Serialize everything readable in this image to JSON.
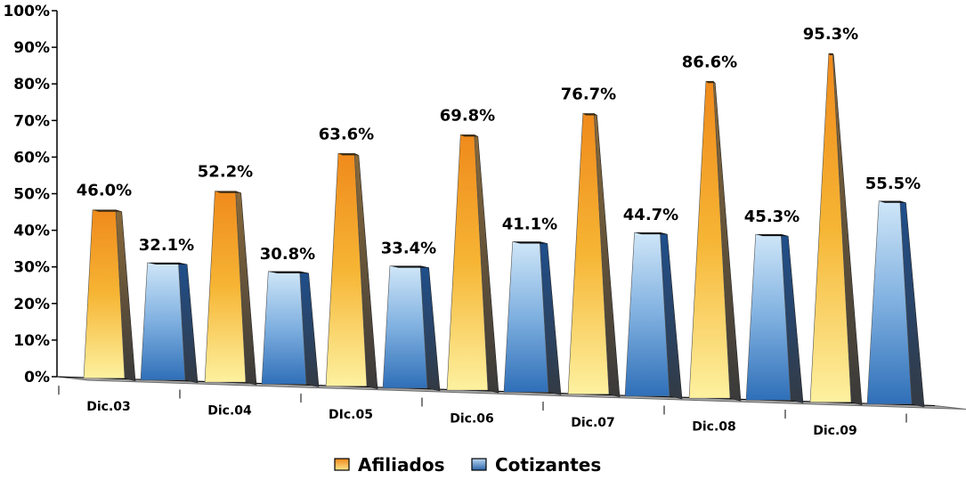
{
  "chart_data": {
    "type": "bar",
    "categories": [
      "Dic.03",
      "Dic.04",
      "DIc.05",
      "Dic.06",
      "Dic.07",
      "Dic.08",
      "Dic.09"
    ],
    "series": [
      {
        "name": "Afiliados",
        "values": [
          46.0,
          52.2,
          63.6,
          69.8,
          76.7,
          86.6,
          95.3
        ],
        "labels": [
          "46.0%",
          "52.2%",
          "63.6%",
          "69.8%",
          "76.7%",
          "86.6%",
          "95.3%"
        ],
        "color": "#f3a62a"
      },
      {
        "name": "Cotizantes",
        "values": [
          32.1,
          30.8,
          33.4,
          41.1,
          44.7,
          45.3,
          55.5
        ],
        "labels": [
          "32.1%",
          "30.8%",
          "33.4%",
          "41.1%",
          "44.7%",
          "45.3%",
          "55.5%"
        ],
        "color": "#2a64a8"
      }
    ],
    "ylim": [
      0,
      100
    ],
    "yticks": [
      "0%",
      "10%",
      "20%",
      "30%",
      "40%",
      "50%",
      "60%",
      "70%",
      "80%",
      "90%",
      "100%"
    ],
    "xlabel": "",
    "ylabel": "",
    "title": "",
    "legend_position": "bottom",
    "grid": false,
    "style": "3d-pyramid-bars",
    "floor_color": "#a7a7a7"
  }
}
